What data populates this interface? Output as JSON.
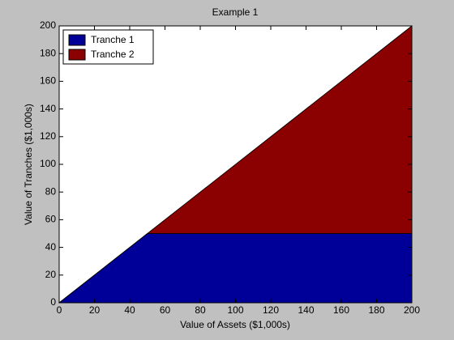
{
  "chart_data": {
    "type": "area",
    "stacked": true,
    "title": "Example 1",
    "x_label": "Value of Assets ($1,000s)",
    "y_label": "Value of Tranches ($1,000s)",
    "x": [
      0,
      50,
      200
    ],
    "series": [
      {
        "name": "Tranche 1",
        "color": "#000099",
        "values": [
          0,
          50,
          50
        ]
      },
      {
        "name": "Tranche 2",
        "color": "#8b0000",
        "values": [
          0,
          0,
          150
        ]
      }
    ],
    "xlim": [
      0,
      200
    ],
    "xticks": [
      0,
      20,
      40,
      60,
      80,
      100,
      120,
      140,
      160,
      180,
      200
    ],
    "ylim": [
      0,
      200
    ],
    "yticks": [
      0,
      20,
      40,
      60,
      80,
      100,
      120,
      140,
      160,
      180,
      200
    ],
    "grid": false,
    "legend": "upper-left"
  }
}
